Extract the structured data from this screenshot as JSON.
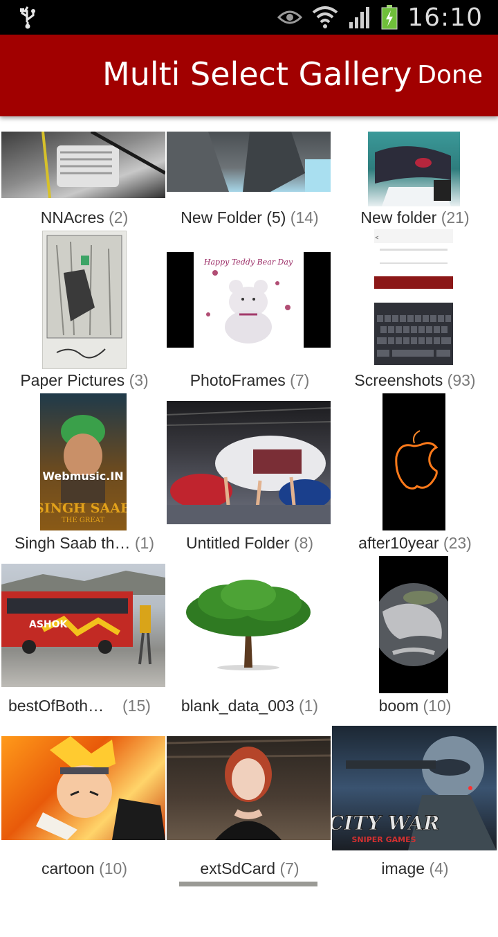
{
  "status_bar": {
    "time": "16:10",
    "icons": [
      "usb-icon",
      "eye-icon",
      "wifi-icon",
      "signal-icon",
      "battery-charging-icon"
    ]
  },
  "action_bar": {
    "title": "Multi Select Gallery",
    "done_label": "Done"
  },
  "colors": {
    "action_bar": "#a10000",
    "status_bar": "#000000",
    "label_text": "#2b2b2b",
    "count_text": "#7a7a7a"
  },
  "albums": [
    {
      "name": "NNAcres",
      "count": "(2)"
    },
    {
      "name": "New Folder (5)",
      "count": "(14)"
    },
    {
      "name": "New folder",
      "count": "(21)"
    },
    {
      "name": "Paper Pictures",
      "count": "(3)"
    },
    {
      "name": "PhotoFrames",
      "count": "(7)"
    },
    {
      "name": "Screenshots",
      "count": "(93)"
    },
    {
      "name": "Singh Saab th…",
      "count": "(1)"
    },
    {
      "name": "Untitled Folder",
      "count": "(8)"
    },
    {
      "name": "after10year",
      "count": "(23)"
    },
    {
      "name": "bestOfBoth…",
      "count": "(15)"
    },
    {
      "name": "blank_data_003",
      "count": "(1)"
    },
    {
      "name": "boom",
      "count": "(10)"
    },
    {
      "name": "cartoon",
      "count": "(10)"
    },
    {
      "name": "extSdCard",
      "count": "(7)"
    },
    {
      "name": "image",
      "count": "(4)"
    }
  ],
  "thumb_text": {
    "teddy_caption": "Happy Teddy Bear Day",
    "singh_watermark": "Webmusic.IN",
    "singh_title": "SINGH SAAB",
    "singh_subtitle": "THE GREAT",
    "bus_text": "ASHOK",
    "citywar_title": "CITY WAR",
    "citywar_sub": "SNIPER GAMES"
  }
}
